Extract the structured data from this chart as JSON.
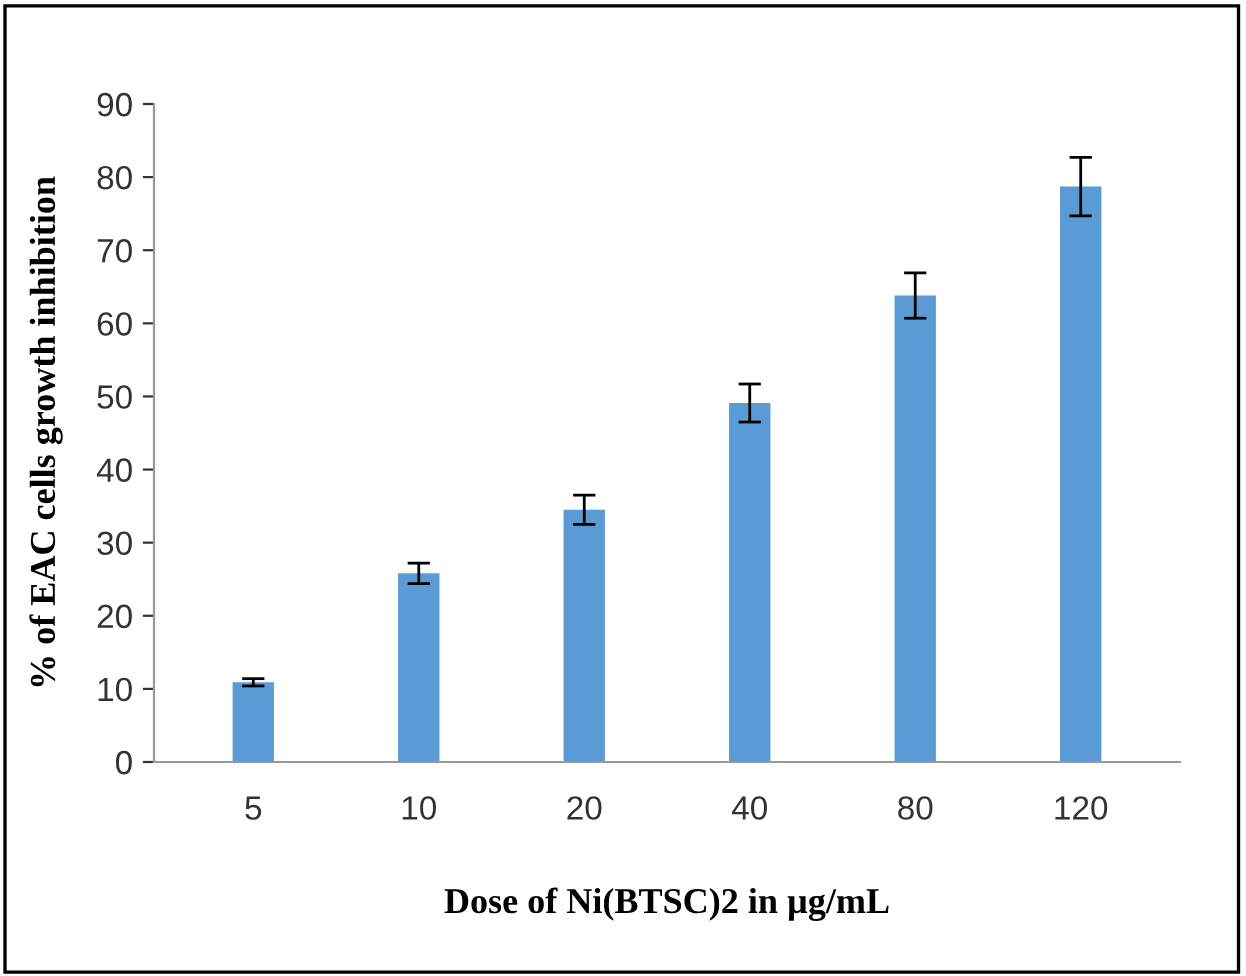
{
  "chart_data": {
    "type": "bar",
    "xlabel": "Dose of Ni(BTSC)2 in µg/mL",
    "ylabel": "% of EAC cells growth inhibition",
    "categories": [
      "5",
      "10",
      "20",
      "40",
      "80",
      "120"
    ],
    "values": [
      10.9,
      25.8,
      34.5,
      49.1,
      63.8,
      78.7
    ],
    "errors": [
      0.5,
      1.4,
      2,
      2.6,
      3.1,
      4
    ],
    "color": "#5b9bd5",
    "ylim": [
      0,
      90
    ],
    "yticks": [
      0,
      10,
      20,
      30,
      40,
      50,
      60,
      70,
      80,
      90
    ],
    "grid": false,
    "legend": false
  }
}
